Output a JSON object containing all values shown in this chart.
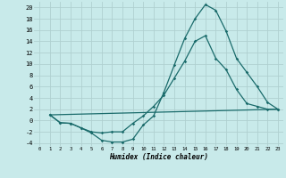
{
  "background_color": "#c8eaea",
  "grid_color": "#afd0d0",
  "line_color": "#1a6b6b",
  "xlabel": "Humidex (Indice chaleur)",
  "xlim": [
    -0.5,
    23.5
  ],
  "ylim": [
    -4.5,
    21
  ],
  "yticks": [
    -4,
    -2,
    0,
    2,
    4,
    6,
    8,
    10,
    12,
    14,
    16,
    18,
    20
  ],
  "xticks": [
    0,
    1,
    2,
    3,
    4,
    5,
    6,
    7,
    8,
    9,
    10,
    11,
    12,
    13,
    14,
    15,
    16,
    17,
    18,
    19,
    20,
    21,
    22,
    23
  ],
  "curve1_x": [
    1,
    2,
    3,
    4,
    5,
    6,
    7,
    8,
    9,
    10,
    11,
    12,
    13,
    14,
    15,
    16,
    17,
    18,
    19,
    20,
    21,
    22,
    23
  ],
  "curve1_y": [
    1.0,
    -0.4,
    -0.5,
    -1.3,
    -2.2,
    -3.5,
    -3.8,
    -3.8,
    -3.3,
    -0.8,
    0.8,
    5.0,
    9.8,
    14.5,
    18.0,
    20.5,
    19.5,
    15.8,
    11.0,
    8.5,
    6.0,
    3.2,
    2.0
  ],
  "curve2_x": [
    1,
    2,
    3,
    4,
    5,
    6,
    7,
    8,
    9,
    10,
    11,
    12,
    13,
    14,
    15,
    16,
    17,
    18,
    19,
    20,
    21,
    22,
    23
  ],
  "curve2_y": [
    1.0,
    -0.4,
    -0.5,
    -1.3,
    -2.0,
    -2.2,
    -2.0,
    -2.0,
    -0.5,
    0.8,
    2.5,
    4.5,
    7.5,
    10.5,
    14.0,
    15.0,
    11.0,
    9.0,
    5.5,
    3.0,
    2.5,
    2.0,
    2.0
  ],
  "curve3_x": [
    1,
    23
  ],
  "curve3_y": [
    1.0,
    2.0
  ]
}
